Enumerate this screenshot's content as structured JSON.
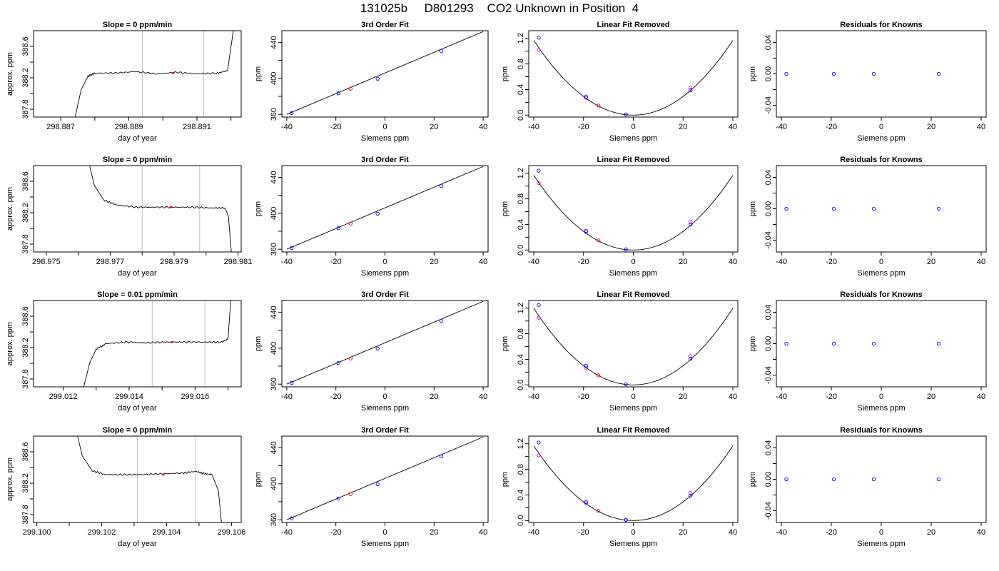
{
  "figure_title": "131025b     D801293    CO2 Unknown in Position  4",
  "colors": {
    "known": "#0000ff",
    "unknown": "#ff0000",
    "secondary": "#cc00cc",
    "gridline": "#bfbfbf",
    "line": "#000000"
  },
  "chart_data": [
    {
      "type": "line",
      "row": 0,
      "col": 0,
      "title": "Slope =  0  ppm/min",
      "xlabel": "day of year",
      "ylabel": "approx. ppm",
      "xlim": [
        298.8862,
        298.8923
      ],
      "ylim": [
        387.7,
        388.8
      ],
      "xticks": [
        "298.887",
        "298.889",
        "298.891"
      ],
      "xtick_values": [
        298.887,
        298.889,
        298.891
      ],
      "xminor": [
        298.888,
        298.89,
        298.892
      ],
      "yticks": [
        "387.8",
        "388.2",
        "388.6"
      ],
      "ytick_values": [
        387.8,
        388.2,
        388.6
      ],
      "yminor": [
        388.0,
        388.4
      ],
      "vlines": [
        298.8894,
        298.8912
      ],
      "trace": [
        [
          298.8874,
          387.66
        ],
        [
          298.8876,
          388.05
        ],
        [
          298.8878,
          388.22
        ],
        [
          298.888,
          388.26
        ],
        [
          298.8886,
          388.26
        ],
        [
          298.8892,
          388.28
        ],
        [
          298.8898,
          388.25
        ],
        [
          298.8904,
          388.27
        ],
        [
          298.891,
          388.25
        ],
        [
          298.8916,
          388.26
        ],
        [
          298.8919,
          388.29
        ],
        [
          298.8921,
          388.9
        ]
      ],
      "marker": [
        298.8903,
        388.26
      ]
    },
    {
      "type": "scatter",
      "row": 0,
      "col": 1,
      "title": "3rd Order Fit",
      "xlabel": "Siemens ppm",
      "ylabel": "ppm",
      "xlim": [
        -42,
        42
      ],
      "ylim": [
        357,
        453
      ],
      "xticks": [
        "-40",
        "-20",
        "0",
        "20",
        "40"
      ],
      "xtick_values": [
        -40,
        -20,
        0,
        20,
        40
      ],
      "yticks": [
        "360",
        "400",
        "440"
      ],
      "ytick_values": [
        360,
        400,
        440
      ],
      "yminor": [
        380,
        420
      ],
      "fit_line": [
        [
          -40,
          360
        ],
        [
          40,
          452
        ]
      ],
      "knowns": [
        [
          -38,
          361.5
        ],
        [
          -19,
          383.5
        ],
        [
          -3,
          399.5
        ],
        [
          23,
          430.5
        ]
      ],
      "unknown": [
        [
          -14,
          388.5
        ]
      ]
    },
    {
      "type": "scatter",
      "row": 0,
      "col": 2,
      "title": "Linear Fit Removed",
      "xlabel": "Siemens ppm",
      "ylabel": "ppm",
      "xlim": [
        -42,
        42
      ],
      "ylim": [
        -0.03,
        1.32
      ],
      "xticks": [
        "-40",
        "-20",
        "0",
        "20",
        "40"
      ],
      "xtick_values": [
        -40,
        -20,
        0,
        20,
        40
      ],
      "yticks": [
        "0.0",
        "0.4",
        "0.8",
        "1.2"
      ],
      "ytick_values": [
        0,
        0.4,
        0.8,
        1.2
      ],
      "yminor": [
        0.2,
        0.6,
        1.0
      ],
      "curve_a": 0.00073,
      "knowns": [
        [
          -38,
          1.21
        ],
        [
          -19,
          0.29
        ],
        [
          -3,
          0.01
        ],
        [
          23,
          0.39
        ]
      ],
      "knowns_secondary": [
        [
          -38,
          1.02
        ],
        [
          -19,
          0.27
        ],
        [
          -3,
          0.01
        ],
        [
          23,
          0.43
        ]
      ],
      "unknown": [
        [
          -14,
          0.15
        ]
      ]
    },
    {
      "type": "scatter",
      "row": 0,
      "col": 3,
      "title": "Residuals for Knowns",
      "xlabel": "Siemens ppm",
      "ylabel": "ppm",
      "xlim": [
        -42,
        42
      ],
      "ylim": [
        -0.055,
        0.055
      ],
      "xticks": [
        "-40",
        "-20",
        "0",
        "20",
        "40"
      ],
      "xtick_values": [
        -40,
        -20,
        0,
        20,
        40
      ],
      "yticks": [
        "-0.04",
        "0.00",
        "0.04"
      ],
      "ytick_values": [
        -0.04,
        0,
        0.04
      ],
      "yminor": [
        -0.02,
        0.02
      ],
      "knowns": [
        [
          -38,
          0
        ],
        [
          -19,
          0
        ],
        [
          -3,
          0
        ],
        [
          23,
          0
        ]
      ]
    },
    {
      "type": "line",
      "row": 1,
      "col": 0,
      "title": "Slope =  0  ppm/min",
      "xlabel": "day of year",
      "ylabel": "approx. ppm",
      "xlim": [
        298.9746,
        298.9811
      ],
      "ylim": [
        387.7,
        388.8
      ],
      "xticks": [
        "298.975",
        "298.977",
        "298.979",
        "298.981"
      ],
      "xtick_values": [
        298.975,
        298.977,
        298.979,
        298.981
      ],
      "xminor": [
        298.976,
        298.978,
        298.98
      ],
      "yticks": [
        "387.8",
        "388.2",
        "388.6"
      ],
      "ytick_values": [
        387.8,
        388.2,
        388.6
      ],
      "yminor": [
        388.0,
        388.4
      ],
      "vlines": [
        298.978,
        298.9798
      ],
      "trace": [
        [
          298.9763,
          388.9
        ],
        [
          298.9765,
          388.55
        ],
        [
          298.9768,
          388.36
        ],
        [
          298.9772,
          388.3
        ],
        [
          298.9778,
          388.27
        ],
        [
          298.9784,
          388.27
        ],
        [
          298.979,
          388.27
        ],
        [
          298.9796,
          388.27
        ],
        [
          298.9802,
          388.26
        ],
        [
          298.9806,
          388.26
        ],
        [
          298.9807,
          388.15
        ],
        [
          298.9808,
          387.66
        ]
      ],
      "marker": [
        298.9789,
        388.27
      ]
    },
    {
      "type": "scatter",
      "row": 1,
      "col": 1,
      "title": "3rd Order Fit",
      "xlabel": "Siemens ppm",
      "ylabel": "ppm",
      "xlim": [
        -42,
        42
      ],
      "ylim": [
        357,
        453
      ],
      "xticks": [
        "-40",
        "-20",
        "0",
        "20",
        "40"
      ],
      "xtick_values": [
        -40,
        -20,
        0,
        20,
        40
      ],
      "yticks": [
        "360",
        "400",
        "440"
      ],
      "ytick_values": [
        360,
        400,
        440
      ],
      "yminor": [
        380,
        420
      ],
      "fit_line": [
        [
          -40,
          360
        ],
        [
          40,
          452
        ]
      ],
      "knowns": [
        [
          -38,
          361.5
        ],
        [
          -19,
          383.5
        ],
        [
          -3,
          399.5
        ],
        [
          23,
          430.5
        ]
      ],
      "unknown": [
        [
          -14,
          388.5
        ]
      ]
    },
    {
      "type": "scatter",
      "row": 1,
      "col": 2,
      "title": "Linear Fit Removed",
      "xlabel": "Siemens ppm",
      "ylabel": "ppm",
      "xlim": [
        -42,
        42
      ],
      "ylim": [
        -0.03,
        1.32
      ],
      "xticks": [
        "-40",
        "-20",
        "0",
        "20",
        "40"
      ],
      "xtick_values": [
        -40,
        -20,
        0,
        20,
        40
      ],
      "yticks": [
        "0.0",
        "0.4",
        "0.8",
        "1.2"
      ],
      "ytick_values": [
        0,
        0.4,
        0.8,
        1.2
      ],
      "yminor": [
        0.2,
        0.6,
        1.0
      ],
      "curve_a": 0.00073,
      "knowns": [
        [
          -38,
          1.24
        ],
        [
          -19,
          0.3
        ],
        [
          -3,
          0.01
        ],
        [
          23,
          0.4
        ]
      ],
      "knowns_secondary": [
        [
          -38,
          1.05
        ],
        [
          -19,
          0.28
        ],
        [
          -3,
          0.01
        ],
        [
          23,
          0.44
        ]
      ],
      "unknown": [
        [
          -14,
          0.15
        ]
      ]
    },
    {
      "type": "scatter",
      "row": 1,
      "col": 3,
      "title": "Residuals for Knowns",
      "xlabel": "Siemens ppm",
      "ylabel": "ppm",
      "xlim": [
        -42,
        42
      ],
      "ylim": [
        -0.055,
        0.055
      ],
      "xticks": [
        "-40",
        "-20",
        "0",
        "20",
        "40"
      ],
      "xtick_values": [
        -40,
        -20,
        0,
        20,
        40
      ],
      "yticks": [
        "-0.04",
        "0.00",
        "0.04"
      ],
      "ytick_values": [
        -0.04,
        0,
        0.04
      ],
      "yminor": [
        -0.02,
        0.02
      ],
      "knowns": [
        [
          -38,
          0
        ],
        [
          -19,
          0
        ],
        [
          -3,
          0
        ],
        [
          23,
          0
        ]
      ]
    },
    {
      "type": "line",
      "row": 2,
      "col": 0,
      "title": "Slope =  0.01  ppm/min",
      "xlabel": "day of year",
      "ylabel": "approx. ppm",
      "xlim": [
        299.0111,
        299.0174
      ],
      "ylim": [
        387.7,
        388.8
      ],
      "xticks": [
        "299.012",
        "299.014",
        "299.016"
      ],
      "xtick_values": [
        299.012,
        299.014,
        299.016
      ],
      "xminor": [
        299.013,
        299.015,
        299.017
      ],
      "yticks": [
        "387.8",
        "388.2",
        "388.6"
      ],
      "ytick_values": [
        387.8,
        388.2,
        388.6
      ],
      "yminor": [
        388.0,
        388.4
      ],
      "vlines": [
        299.0147,
        299.0163
      ],
      "trace": [
        [
          299.0126,
          387.66
        ],
        [
          299.0128,
          388.0
        ],
        [
          299.013,
          388.18
        ],
        [
          299.0133,
          388.25
        ],
        [
          299.0139,
          388.27
        ],
        [
          299.0145,
          388.26
        ],
        [
          299.0151,
          388.27
        ],
        [
          299.0157,
          388.27
        ],
        [
          299.0163,
          388.27
        ],
        [
          299.0168,
          388.27
        ],
        [
          299.017,
          388.31
        ],
        [
          299.0171,
          388.9
        ]
      ],
      "marker": [
        299.0153,
        388.27
      ]
    },
    {
      "type": "scatter",
      "row": 2,
      "col": 1,
      "title": "3rd Order Fit",
      "xlabel": "Siemens ppm",
      "ylabel": "ppm",
      "xlim": [
        -42,
        42
      ],
      "ylim": [
        357,
        453
      ],
      "xticks": [
        "-40",
        "-20",
        "0",
        "20",
        "40"
      ],
      "xtick_values": [
        -40,
        -20,
        0,
        20,
        40
      ],
      "yticks": [
        "360",
        "400",
        "440"
      ],
      "ytick_values": [
        360,
        400,
        440
      ],
      "yminor": [
        380,
        420
      ],
      "fit_line": [
        [
          -40,
          360
        ],
        [
          40,
          452
        ]
      ],
      "knowns": [
        [
          -38,
          361.5
        ],
        [
          -19,
          383.5
        ],
        [
          -3,
          399.5
        ],
        [
          23,
          430.5
        ]
      ],
      "unknown": [
        [
          -14,
          388.5
        ]
      ]
    },
    {
      "type": "scatter",
      "row": 2,
      "col": 2,
      "title": "Linear Fit Removed",
      "xlabel": "Siemens ppm",
      "ylabel": "ppm",
      "xlim": [
        -42,
        42
      ],
      "ylim": [
        -0.03,
        1.32
      ],
      "xticks": [
        "-40",
        "-20",
        "0",
        "20",
        "40"
      ],
      "xtick_values": [
        -40,
        -20,
        0,
        20,
        40
      ],
      "yticks": [
        "0.0",
        "0.4",
        "0.8",
        "1.2"
      ],
      "ytick_values": [
        0,
        0.4,
        0.8,
        1.2
      ],
      "yminor": [
        0.2,
        0.6,
        1.0
      ],
      "curve_a": 0.00075,
      "knowns": [
        [
          -38,
          1.25
        ],
        [
          -19,
          0.3
        ],
        [
          -3,
          0.01
        ],
        [
          23,
          0.41
        ]
      ],
      "knowns_secondary": [
        [
          -38,
          1.05
        ],
        [
          -19,
          0.27
        ],
        [
          -3,
          0.01
        ],
        [
          23,
          0.45
        ]
      ],
      "unknown": [
        [
          -14,
          0.15
        ]
      ]
    },
    {
      "type": "scatter",
      "row": 2,
      "col": 3,
      "title": "Residuals for Knowns",
      "xlabel": "Siemens ppm",
      "ylabel": "ppm",
      "xlim": [
        -42,
        42
      ],
      "ylim": [
        -0.055,
        0.055
      ],
      "xticks": [
        "-40",
        "-20",
        "0",
        "20",
        "40"
      ],
      "xtick_values": [
        -40,
        -20,
        0,
        20,
        40
      ],
      "yticks": [
        "-0.04",
        "0.00",
        "0.04"
      ],
      "ytick_values": [
        -0.04,
        0,
        0.04
      ],
      "yminor": [
        -0.02,
        0.02
      ],
      "knowns": [
        [
          -38,
          0
        ],
        [
          -19,
          0
        ],
        [
          -3,
          0
        ],
        [
          23,
          0
        ]
      ]
    },
    {
      "type": "line",
      "row": 3,
      "col": 0,
      "title": "Slope =  0  ppm/min",
      "xlabel": "day of year",
      "ylabel": "approx. ppm",
      "xlim": [
        299.0999,
        299.1063
      ],
      "ylim": [
        387.7,
        388.8
      ],
      "xticks": [
        "299.100",
        "299.102",
        "299.104",
        "299.106"
      ],
      "xtick_values": [
        299.1,
        299.102,
        299.104,
        299.106
      ],
      "xminor": [
        299.101,
        299.103,
        299.105
      ],
      "yticks": [
        "387.8",
        "388.2",
        "388.6"
      ],
      "ytick_values": [
        387.8,
        388.2,
        388.6
      ],
      "yminor": [
        388.0,
        388.4
      ],
      "vlines": [
        299.1031,
        299.1049
      ],
      "trace": [
        [
          299.1012,
          388.9
        ],
        [
          299.1014,
          388.55
        ],
        [
          299.1017,
          388.36
        ],
        [
          299.1021,
          388.31
        ],
        [
          299.1027,
          388.31
        ],
        [
          299.1033,
          388.31
        ],
        [
          299.1039,
          388.32
        ],
        [
          299.1045,
          388.33
        ],
        [
          299.1049,
          388.35
        ],
        [
          299.1052,
          388.32
        ],
        [
          299.1054,
          388.31
        ],
        [
          299.1056,
          388.1
        ],
        [
          299.1057,
          387.66
        ]
      ],
      "marker": [
        299.1039,
        388.31
      ]
    },
    {
      "type": "scatter",
      "row": 3,
      "col": 1,
      "title": "3rd Order Fit",
      "xlabel": "Siemens ppm",
      "ylabel": "ppm",
      "xlim": [
        -42,
        42
      ],
      "ylim": [
        357,
        453
      ],
      "xticks": [
        "-40",
        "-20",
        "0",
        "20",
        "40"
      ],
      "xtick_values": [
        -40,
        -20,
        0,
        20,
        40
      ],
      "yticks": [
        "360",
        "400",
        "440"
      ],
      "ytick_values": [
        360,
        400,
        440
      ],
      "yminor": [
        380,
        420
      ],
      "fit_line": [
        [
          -40,
          360
        ],
        [
          40,
          452
        ]
      ],
      "knowns": [
        [
          -38,
          361.5
        ],
        [
          -19,
          383.5
        ],
        [
          -3,
          399.5
        ],
        [
          23,
          430.5
        ]
      ],
      "unknown": [
        [
          -14,
          388.5
        ]
      ]
    },
    {
      "type": "scatter",
      "row": 3,
      "col": 2,
      "title": "Linear Fit Removed",
      "xlabel": "Siemens ppm",
      "ylabel": "ppm",
      "xlim": [
        -42,
        42
      ],
      "ylim": [
        -0.03,
        1.32
      ],
      "xticks": [
        "-40",
        "-20",
        "0",
        "20",
        "40"
      ],
      "xtick_values": [
        -40,
        -20,
        0,
        20,
        40
      ],
      "yticks": [
        "0.0",
        "0.4",
        "0.8",
        "1.2"
      ],
      "ytick_values": [
        0,
        0.4,
        0.8,
        1.2
      ],
      "yminor": [
        0.2,
        0.6,
        1.0
      ],
      "curve_a": 0.00073,
      "knowns": [
        [
          -38,
          1.22
        ],
        [
          -19,
          0.29
        ],
        [
          -3,
          0.01
        ],
        [
          23,
          0.39
        ]
      ],
      "knowns_secondary": [
        [
          -38,
          1.02
        ],
        [
          -19,
          0.27
        ],
        [
          -3,
          0.01
        ],
        [
          23,
          0.43
        ]
      ],
      "unknown": [
        [
          -14,
          0.15
        ]
      ]
    },
    {
      "type": "scatter",
      "row": 3,
      "col": 3,
      "title": "Residuals for Knowns",
      "xlabel": "Siemens ppm",
      "ylabel": "ppm",
      "xlim": [
        -42,
        42
      ],
      "ylim": [
        -0.055,
        0.055
      ],
      "xticks": [
        "-40",
        "-20",
        "0",
        "20",
        "40"
      ],
      "xtick_values": [
        -40,
        -20,
        0,
        20,
        40
      ],
      "yticks": [
        "-0.04",
        "0.00",
        "0.04"
      ],
      "ytick_values": [
        -0.04,
        0,
        0.04
      ],
      "yminor": [
        -0.02,
        0.02
      ],
      "knowns": [
        [
          -38,
          0
        ],
        [
          -19,
          0
        ],
        [
          -3,
          0
        ],
        [
          23,
          0
        ]
      ]
    }
  ]
}
